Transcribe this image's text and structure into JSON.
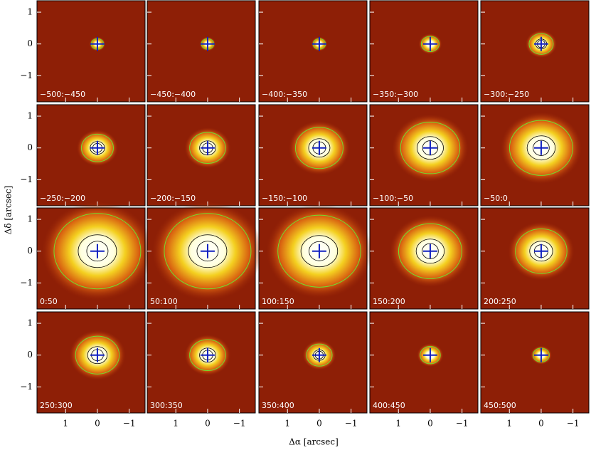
{
  "chart_data": {
    "type": "image-grid",
    "xlabel": "Δα [arcsec]",
    "ylabel": "Δδ [arcsec]",
    "xlim": [
      1.9,
      -1.5
    ],
    "ylim": [
      -1.82,
      1.36
    ],
    "xticks": [
      1,
      0,
      {
        "value": -1,
        "label": "−1"
      }
    ],
    "yticks": [
      {
        "value": -1,
        "label": "−1"
      },
      0,
      1
    ],
    "panels": [
      {
        "label": "−500:−450"
      },
      {
        "label": "−450:−400"
      },
      {
        "label": "−400:−350"
      },
      {
        "label": "−350:−300"
      },
      {
        "label": "−300:−250"
      },
      {
        "label": "−250:−200"
      },
      {
        "label": "−200:−150"
      },
      {
        "label": "−150:−100"
      },
      {
        "label": "−100:−50"
      },
      {
        "label": "−50:0"
      },
      {
        "label": "0:50"
      },
      {
        "label": "50:100"
      },
      {
        "label": "100:150"
      },
      {
        "label": "150:200"
      },
      {
        "label": "200:250"
      },
      {
        "label": "250:300"
      },
      {
        "label": "300:350"
      },
      {
        "label": "350:400"
      },
      {
        "label": "400:450"
      },
      {
        "label": "450:500"
      }
    ]
  }
}
